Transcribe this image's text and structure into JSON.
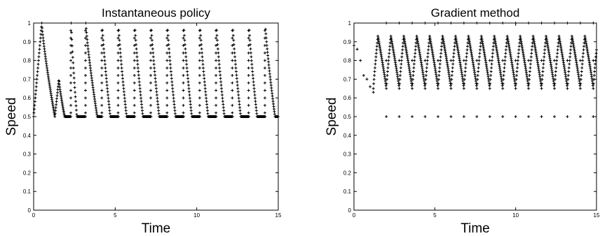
{
  "chart_data": [
    {
      "type": "scatter",
      "title": "Instantaneous policy",
      "xlabel": "Time",
      "ylabel": "Speed",
      "xlim": [
        0,
        15
      ],
      "ylim": [
        0,
        1
      ],
      "xticks": [
        "0",
        "5",
        "10",
        "15"
      ],
      "yticks": [
        "0",
        "0.1",
        "0.2",
        "0.3",
        "0.4",
        "0.5",
        "0.6",
        "0.7",
        "0.8",
        "0.9",
        "1"
      ],
      "grid": false,
      "marker": "plus",
      "cycles": [
        {
          "start": 0.0,
          "peak_time": 0.5,
          "peak": 1.0,
          "end": 1.3
        },
        {
          "start": 1.3,
          "peak_time": 1.55,
          "peak": 0.7,
          "end": 1.9
        },
        {
          "start": 2.3,
          "peak_time": 2.3,
          "peak": 1.0,
          "end": 2.65
        },
        {
          "start": 3.2,
          "peak_time": 3.2,
          "peak": 1.0,
          "end": 3.9
        },
        {
          "start": 4.2,
          "peak_time": 4.2,
          "peak": 1.0,
          "end": 4.7
        },
        {
          "start": 5.2,
          "peak_time": 5.2,
          "peak": 1.0,
          "end": 5.7
        },
        {
          "start": 6.2,
          "peak_time": 6.2,
          "peak": 1.0,
          "end": 6.7
        },
        {
          "start": 7.2,
          "peak_time": 7.2,
          "peak": 1.0,
          "end": 7.7
        },
        {
          "start": 8.2,
          "peak_time": 8.2,
          "peak": 1.0,
          "end": 8.7
        },
        {
          "start": 9.2,
          "peak_time": 9.2,
          "peak": 1.0,
          "end": 9.7
        },
        {
          "start": 10.2,
          "peak_time": 10.2,
          "peak": 1.0,
          "end": 10.7
        },
        {
          "start": 11.2,
          "peak_time": 11.2,
          "peak": 1.0,
          "end": 11.7
        },
        {
          "start": 12.2,
          "peak_time": 12.2,
          "peak": 1.0,
          "end": 12.7
        },
        {
          "start": 13.2,
          "peak_time": 13.2,
          "peak": 1.0,
          "end": 13.7
        },
        {
          "start": 14.2,
          "peak_time": 14.2,
          "peak": 1.0,
          "end": 14.8
        }
      ],
      "baseline": 0.5
    },
    {
      "type": "scatter",
      "title": "Gradient method",
      "xlabel": "Time",
      "ylabel": "Speed",
      "xlim": [
        0,
        15
      ],
      "ylim": [
        0,
        1
      ],
      "xticks": [
        "0",
        "5",
        "10",
        "15"
      ],
      "yticks": [
        "0",
        "0.1",
        "0.2",
        "0.3",
        "0.4",
        "0.5",
        "0.6",
        "0.7",
        "0.8",
        "0.9",
        "1"
      ],
      "grid": false,
      "marker": "plus",
      "oscillation": {
        "low": 0.65,
        "high": 0.93,
        "period": 0.8,
        "start": 1.2
      },
      "initial": [
        {
          "x": 0.0,
          "y": 0.88
        },
        {
          "x": 0.2,
          "y": 0.86
        },
        {
          "x": 0.4,
          "y": 0.8
        },
        {
          "x": 0.6,
          "y": 0.72
        },
        {
          "x": 0.8,
          "y": 0.7
        },
        {
          "x": 1.0,
          "y": 0.66
        },
        {
          "x": 1.2,
          "y": 0.63
        }
      ],
      "outlier_levels": [
        1.0,
        0.8,
        0.5
      ],
      "outlier_x": [
        2.0,
        2.8,
        3.6,
        4.4,
        5.2,
        6.0,
        6.8,
        7.6,
        8.4,
        9.2,
        10.0,
        10.8,
        11.6,
        12.4,
        13.2,
        14.0,
        14.8
      ]
    }
  ]
}
